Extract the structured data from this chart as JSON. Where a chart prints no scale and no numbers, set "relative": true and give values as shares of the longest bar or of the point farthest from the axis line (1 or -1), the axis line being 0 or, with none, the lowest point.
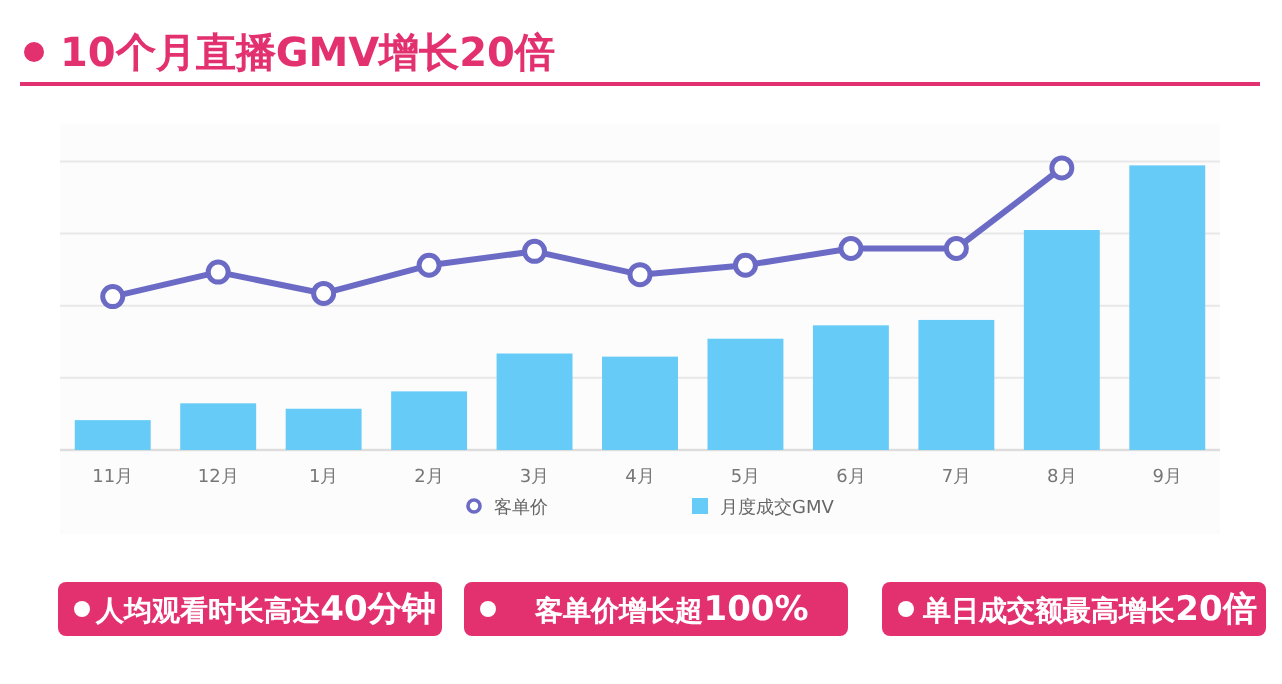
{
  "chart_data": {
    "type": "bar",
    "title": "10个月直播GMV增长20倍",
    "categories": [
      "11月",
      "12月",
      "1月",
      "2月",
      "3月",
      "4月",
      "5月",
      "6月",
      "7月",
      "8月",
      "9月"
    ],
    "relative": true,
    "grid": "y",
    "legend": "bottom",
    "marker": "circle",
    "line_style": "solid",
    "series": [
      {
        "name": "客单价",
        "type": "line",
        "color": "#6b6bc6",
        "values": [
          0.539,
          0.625,
          0.55,
          0.649,
          0.698,
          0.616,
          0.649,
          0.708,
          0.708,
          0.991,
          null
        ]
      },
      {
        "name": "月度成交GMV",
        "type": "bar",
        "color": "#66cbf7",
        "values": [
          0.105,
          0.164,
          0.145,
          0.206,
          0.339,
          0.328,
          0.391,
          0.438,
          0.457,
          0.773,
          1
        ]
      }
    ],
    "annotations": [
      "人均观看时长高达**40分钟**",
      "客单价增长超**100%**",
      "单日成交额最高增长**20倍**"
    ]
  }
}
